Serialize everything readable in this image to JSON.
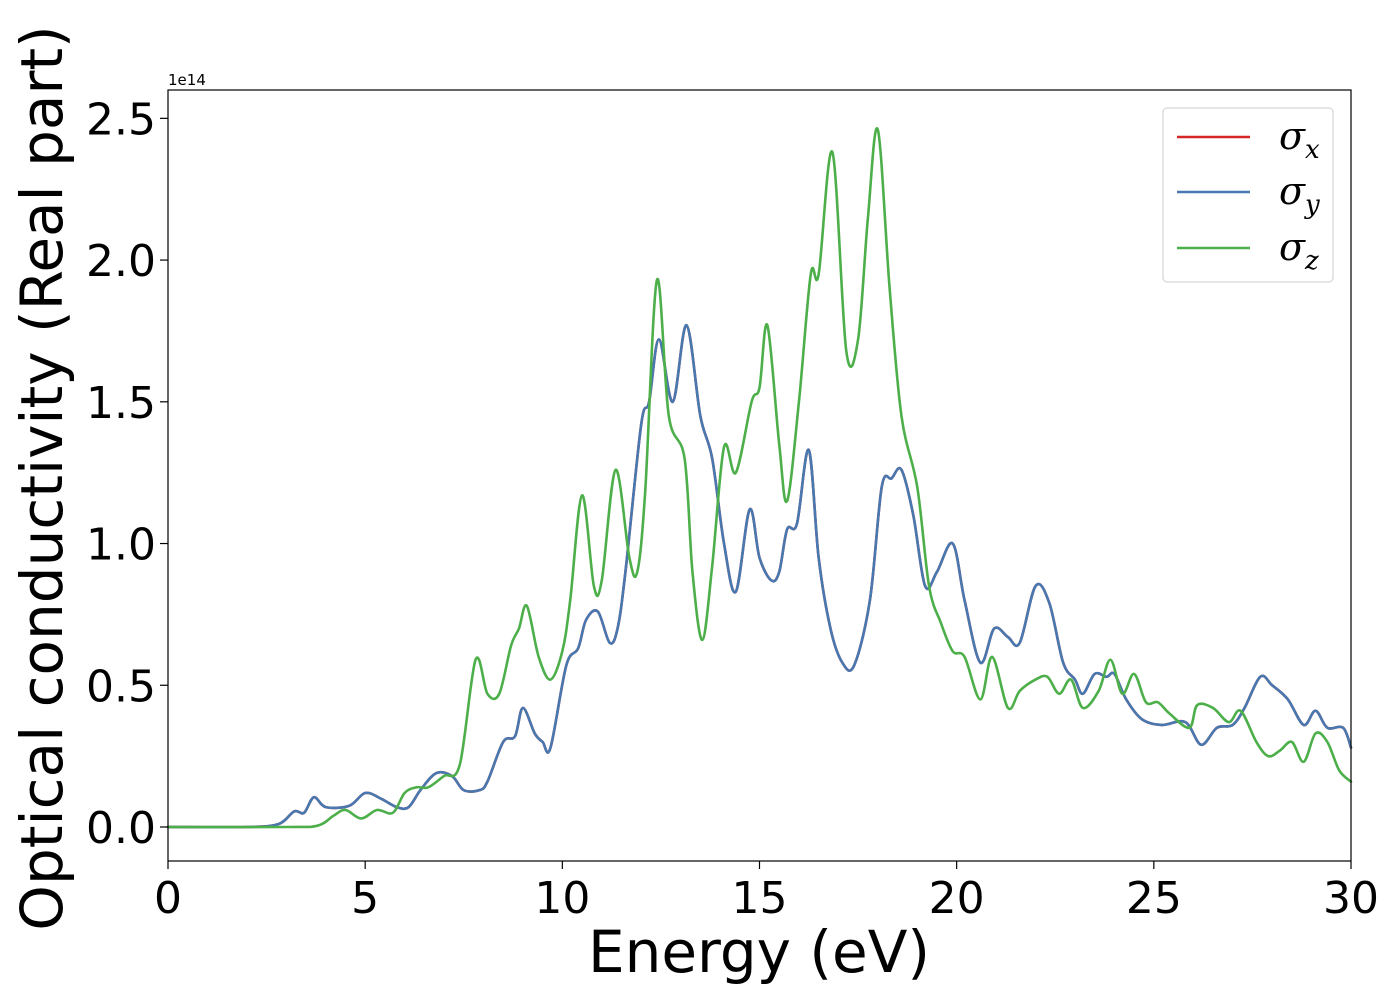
{
  "chart_data": {
    "type": "line",
    "title": "",
    "xlabel": "Energy (eV)",
    "ylabel": "Optical conductivity (Real part)",
    "y_offset_label": "1e14",
    "xlim": [
      0,
      30
    ],
    "ylim": [
      -0.12,
      2.6
    ],
    "x_ticks": [
      0,
      5,
      10,
      15,
      20,
      25,
      30
    ],
    "x_tick_labels": [
      "0",
      "5",
      "10",
      "15",
      "20",
      "25",
      "30"
    ],
    "y_ticks": [
      0.0,
      0.5,
      1.0,
      1.5,
      2.0,
      2.5
    ],
    "y_tick_labels": [
      "0.0",
      "0.5",
      "1.0",
      "1.5",
      "2.0",
      "2.5"
    ],
    "grid": false,
    "legend_position": "top-right",
    "legend": [
      {
        "symbol": "σ",
        "sub": "x",
        "color": "#d62728"
      },
      {
        "symbol": "σ",
        "sub": "y",
        "color": "#4878b0"
      },
      {
        "symbol": "σ",
        "sub": "z",
        "color": "#4daf4a"
      }
    ],
    "series": [
      {
        "key": "sigma_x",
        "color": "#d62728",
        "points": [
          [
            0,
            0
          ],
          [
            2,
            0
          ],
          [
            2.8,
            0.01
          ],
          [
            3.2,
            0.055
          ],
          [
            3.45,
            0.05
          ],
          [
            3.7,
            0.105
          ],
          [
            4.0,
            0.07
          ],
          [
            4.6,
            0.075
          ],
          [
            5.0,
            0.12
          ],
          [
            5.4,
            0.1
          ],
          [
            5.8,
            0.07
          ],
          [
            6.1,
            0.07
          ],
          [
            6.4,
            0.13
          ],
          [
            6.8,
            0.19
          ],
          [
            7.2,
            0.18
          ],
          [
            7.5,
            0.13
          ],
          [
            7.9,
            0.13
          ],
          [
            8.1,
            0.16
          ],
          [
            8.5,
            0.3
          ],
          [
            8.8,
            0.32
          ],
          [
            9.0,
            0.42
          ],
          [
            9.3,
            0.33
          ],
          [
            9.5,
            0.3
          ],
          [
            9.7,
            0.28
          ],
          [
            10.1,
            0.57
          ],
          [
            10.4,
            0.63
          ],
          [
            10.6,
            0.73
          ],
          [
            10.9,
            0.76
          ],
          [
            11.2,
            0.65
          ],
          [
            11.4,
            0.7
          ],
          [
            11.6,
            0.9
          ],
          [
            12.0,
            1.42
          ],
          [
            12.2,
            1.5
          ],
          [
            12.45,
            1.72
          ],
          [
            12.8,
            1.5
          ],
          [
            13.15,
            1.77
          ],
          [
            13.5,
            1.45
          ],
          [
            13.8,
            1.3
          ],
          [
            14.1,
            1.0
          ],
          [
            14.4,
            0.83
          ],
          [
            14.75,
            1.12
          ],
          [
            15.0,
            0.95
          ],
          [
            15.3,
            0.87
          ],
          [
            15.5,
            0.9
          ],
          [
            15.7,
            1.05
          ],
          [
            15.95,
            1.07
          ],
          [
            16.25,
            1.33
          ],
          [
            16.5,
            0.95
          ],
          [
            16.8,
            0.7
          ],
          [
            17.1,
            0.58
          ],
          [
            17.4,
            0.57
          ],
          [
            17.8,
            0.8
          ],
          [
            18.1,
            1.2
          ],
          [
            18.35,
            1.23
          ],
          [
            18.6,
            1.26
          ],
          [
            18.9,
            1.1
          ],
          [
            19.2,
            0.85
          ],
          [
            19.5,
            0.9
          ],
          [
            19.9,
            1.0
          ],
          [
            20.2,
            0.8
          ],
          [
            20.6,
            0.58
          ],
          [
            20.95,
            0.7
          ],
          [
            21.3,
            0.67
          ],
          [
            21.6,
            0.65
          ],
          [
            22.0,
            0.85
          ],
          [
            22.35,
            0.79
          ],
          [
            22.7,
            0.58
          ],
          [
            23.0,
            0.52
          ],
          [
            23.2,
            0.47
          ],
          [
            23.5,
            0.54
          ],
          [
            23.8,
            0.53
          ],
          [
            24.0,
            0.54
          ],
          [
            24.3,
            0.45
          ],
          [
            24.7,
            0.38
          ],
          [
            25.2,
            0.36
          ],
          [
            25.8,
            0.37
          ],
          [
            26.2,
            0.29
          ],
          [
            26.6,
            0.35
          ],
          [
            27.0,
            0.36
          ],
          [
            27.3,
            0.42
          ],
          [
            27.7,
            0.53
          ],
          [
            28.0,
            0.5
          ],
          [
            28.4,
            0.45
          ],
          [
            28.8,
            0.36
          ],
          [
            29.1,
            0.41
          ],
          [
            29.4,
            0.35
          ],
          [
            29.8,
            0.35
          ],
          [
            30.0,
            0.28
          ]
        ]
      },
      {
        "key": "sigma_y",
        "color": "#4878b0",
        "points": [
          [
            0,
            0
          ],
          [
            2,
            0
          ],
          [
            2.8,
            0.01
          ],
          [
            3.2,
            0.055
          ],
          [
            3.45,
            0.05
          ],
          [
            3.7,
            0.105
          ],
          [
            4.0,
            0.07
          ],
          [
            4.6,
            0.075
          ],
          [
            5.0,
            0.12
          ],
          [
            5.4,
            0.1
          ],
          [
            5.8,
            0.07
          ],
          [
            6.1,
            0.07
          ],
          [
            6.4,
            0.13
          ],
          [
            6.8,
            0.19
          ],
          [
            7.2,
            0.18
          ],
          [
            7.5,
            0.13
          ],
          [
            7.9,
            0.13
          ],
          [
            8.1,
            0.16
          ],
          [
            8.5,
            0.3
          ],
          [
            8.8,
            0.32
          ],
          [
            9.0,
            0.42
          ],
          [
            9.3,
            0.33
          ],
          [
            9.5,
            0.3
          ],
          [
            9.7,
            0.28
          ],
          [
            10.1,
            0.57
          ],
          [
            10.4,
            0.63
          ],
          [
            10.6,
            0.73
          ],
          [
            10.9,
            0.76
          ],
          [
            11.2,
            0.65
          ],
          [
            11.4,
            0.7
          ],
          [
            11.6,
            0.9
          ],
          [
            12.0,
            1.42
          ],
          [
            12.2,
            1.5
          ],
          [
            12.45,
            1.72
          ],
          [
            12.8,
            1.5
          ],
          [
            13.15,
            1.77
          ],
          [
            13.5,
            1.45
          ],
          [
            13.8,
            1.3
          ],
          [
            14.1,
            1.0
          ],
          [
            14.4,
            0.83
          ],
          [
            14.75,
            1.12
          ],
          [
            15.0,
            0.95
          ],
          [
            15.3,
            0.87
          ],
          [
            15.5,
            0.9
          ],
          [
            15.7,
            1.05
          ],
          [
            15.95,
            1.07
          ],
          [
            16.25,
            1.33
          ],
          [
            16.5,
            0.95
          ],
          [
            16.8,
            0.7
          ],
          [
            17.1,
            0.58
          ],
          [
            17.4,
            0.57
          ],
          [
            17.8,
            0.8
          ],
          [
            18.1,
            1.2
          ],
          [
            18.35,
            1.23
          ],
          [
            18.6,
            1.26
          ],
          [
            18.9,
            1.1
          ],
          [
            19.2,
            0.85
          ],
          [
            19.5,
            0.9
          ],
          [
            19.9,
            1.0
          ],
          [
            20.2,
            0.8
          ],
          [
            20.6,
            0.58
          ],
          [
            20.95,
            0.7
          ],
          [
            21.3,
            0.67
          ],
          [
            21.6,
            0.65
          ],
          [
            22.0,
            0.85
          ],
          [
            22.35,
            0.79
          ],
          [
            22.7,
            0.58
          ],
          [
            23.0,
            0.52
          ],
          [
            23.2,
            0.47
          ],
          [
            23.5,
            0.54
          ],
          [
            23.8,
            0.53
          ],
          [
            24.0,
            0.54
          ],
          [
            24.3,
            0.45
          ],
          [
            24.7,
            0.38
          ],
          [
            25.2,
            0.36
          ],
          [
            25.8,
            0.37
          ],
          [
            26.2,
            0.29
          ],
          [
            26.6,
            0.35
          ],
          [
            27.0,
            0.36
          ],
          [
            27.3,
            0.42
          ],
          [
            27.7,
            0.53
          ],
          [
            28.0,
            0.5
          ],
          [
            28.4,
            0.45
          ],
          [
            28.8,
            0.36
          ],
          [
            29.1,
            0.41
          ],
          [
            29.4,
            0.35
          ],
          [
            29.8,
            0.35
          ],
          [
            30.0,
            0.28
          ]
        ]
      },
      {
        "key": "sigma_z",
        "color": "#4daf4a",
        "points": [
          [
            0,
            0
          ],
          [
            3.0,
            0
          ],
          [
            3.8,
            0.005
          ],
          [
            4.2,
            0.04
          ],
          [
            4.5,
            0.06
          ],
          [
            4.9,
            0.03
          ],
          [
            5.3,
            0.06
          ],
          [
            5.7,
            0.05
          ],
          [
            6.0,
            0.12
          ],
          [
            6.3,
            0.14
          ],
          [
            6.6,
            0.14
          ],
          [
            7.0,
            0.18
          ],
          [
            7.4,
            0.22
          ],
          [
            7.8,
            0.59
          ],
          [
            8.1,
            0.47
          ],
          [
            8.4,
            0.47
          ],
          [
            8.7,
            0.64
          ],
          [
            8.9,
            0.7
          ],
          [
            9.1,
            0.78
          ],
          [
            9.4,
            0.6
          ],
          [
            9.7,
            0.52
          ],
          [
            10.0,
            0.62
          ],
          [
            10.2,
            0.8
          ],
          [
            10.5,
            1.17
          ],
          [
            10.8,
            0.85
          ],
          [
            11.0,
            0.87
          ],
          [
            11.35,
            1.26
          ],
          [
            11.7,
            0.95
          ],
          [
            11.9,
            0.9
          ],
          [
            12.1,
            1.18
          ],
          [
            12.4,
            1.93
          ],
          [
            12.7,
            1.45
          ],
          [
            13.1,
            1.3
          ],
          [
            13.3,
            0.9
          ],
          [
            13.55,
            0.66
          ],
          [
            13.8,
            0.92
          ],
          [
            14.1,
            1.34
          ],
          [
            14.4,
            1.25
          ],
          [
            14.8,
            1.5
          ],
          [
            15.0,
            1.55
          ],
          [
            15.2,
            1.77
          ],
          [
            15.5,
            1.35
          ],
          [
            15.7,
            1.15
          ],
          [
            16.0,
            1.5
          ],
          [
            16.3,
            1.95
          ],
          [
            16.5,
            1.95
          ],
          [
            16.85,
            2.38
          ],
          [
            17.2,
            1.68
          ],
          [
            17.5,
            1.72
          ],
          [
            17.75,
            2.15
          ],
          [
            18.0,
            2.46
          ],
          [
            18.3,
            1.9
          ],
          [
            18.6,
            1.45
          ],
          [
            19.0,
            1.2
          ],
          [
            19.3,
            0.85
          ],
          [
            19.6,
            0.72
          ],
          [
            19.9,
            0.62
          ],
          [
            20.2,
            0.6
          ],
          [
            20.6,
            0.45
          ],
          [
            20.9,
            0.6
          ],
          [
            21.3,
            0.42
          ],
          [
            21.6,
            0.48
          ],
          [
            22.0,
            0.52
          ],
          [
            22.3,
            0.53
          ],
          [
            22.6,
            0.47
          ],
          [
            22.9,
            0.52
          ],
          [
            23.2,
            0.42
          ],
          [
            23.6,
            0.48
          ],
          [
            23.9,
            0.59
          ],
          [
            24.2,
            0.47
          ],
          [
            24.5,
            0.54
          ],
          [
            24.8,
            0.44
          ],
          [
            25.1,
            0.44
          ],
          [
            25.4,
            0.4
          ],
          [
            25.9,
            0.35
          ],
          [
            26.1,
            0.43
          ],
          [
            26.5,
            0.42
          ],
          [
            26.9,
            0.37
          ],
          [
            27.2,
            0.41
          ],
          [
            27.6,
            0.3
          ],
          [
            27.9,
            0.25
          ],
          [
            28.2,
            0.27
          ],
          [
            28.5,
            0.3
          ],
          [
            28.8,
            0.23
          ],
          [
            29.1,
            0.33
          ],
          [
            29.4,
            0.3
          ],
          [
            29.7,
            0.2
          ],
          [
            30.0,
            0.16
          ]
        ]
      }
    ]
  }
}
